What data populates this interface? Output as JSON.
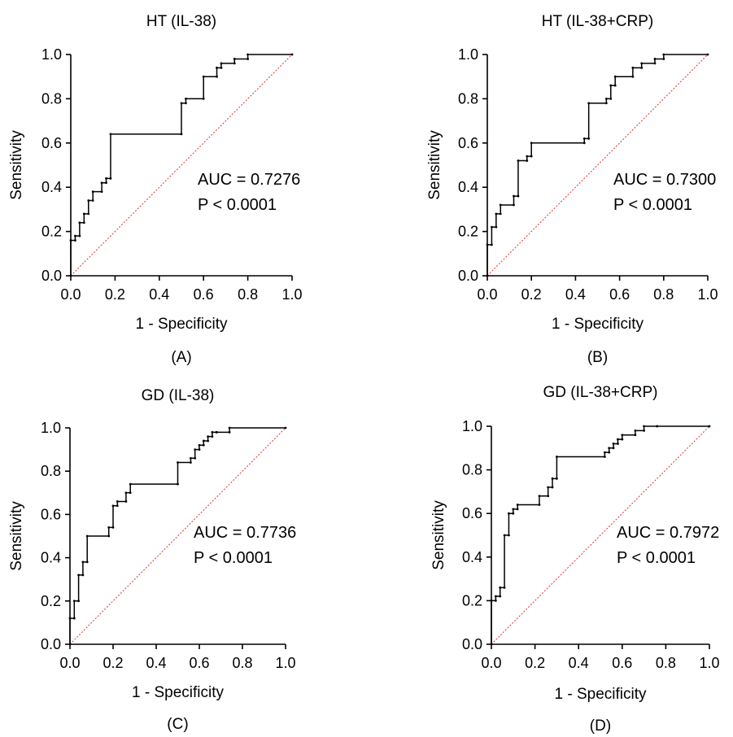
{
  "chart_data": [
    {
      "type": "line",
      "title": "HT (IL-38)",
      "panel_label": "(A)",
      "xlabel": "1 - Specificity",
      "ylabel": "Sensitivity",
      "xlim": [
        0,
        1
      ],
      "ylim": [
        0,
        1
      ],
      "xticks": [
        "0.0",
        "0.2",
        "0.4",
        "0.6",
        "0.8",
        "1.0"
      ],
      "yticks": [
        "0.0",
        "0.2",
        "0.4",
        "0.6",
        "0.8",
        "1.0"
      ],
      "annotations": [
        "AUC = 0.7276",
        "P < 0.0001"
      ],
      "grid": false,
      "reference_line": {
        "x": [
          0,
          1
        ],
        "y": [
          0,
          1
        ],
        "color": "#e03030",
        "style": "dotted"
      },
      "series": [
        {
          "color": "#000000",
          "x": [
            0,
            0,
            0.02,
            0.02,
            0.04,
            0.04,
            0.06,
            0.06,
            0.08,
            0.08,
            0.1,
            0.1,
            0.14,
            0.14,
            0.16,
            0.16,
            0.18,
            0.18,
            0.5,
            0.5,
            0.52,
            0.52,
            0.6,
            0.6,
            0.66,
            0.66,
            0.68,
            0.68,
            0.74,
            0.74,
            0.8,
            0.8,
            1.0
          ],
          "y": [
            0,
            0.16,
            0.16,
            0.18,
            0.18,
            0.24,
            0.24,
            0.28,
            0.28,
            0.34,
            0.34,
            0.38,
            0.38,
            0.42,
            0.42,
            0.44,
            0.44,
            0.64,
            0.64,
            0.78,
            0.78,
            0.8,
            0.8,
            0.9,
            0.9,
            0.94,
            0.94,
            0.96,
            0.96,
            0.98,
            0.98,
            1.0,
            1.0
          ]
        }
      ]
    },
    {
      "type": "line",
      "title": "HT (IL-38+CRP)",
      "panel_label": "(B)",
      "xlabel": "1 - Specificity",
      "ylabel": "Sensitivity",
      "xlim": [
        0,
        1
      ],
      "ylim": [
        0,
        1
      ],
      "xticks": [
        "0.0",
        "0.2",
        "0.4",
        "0.6",
        "0.8",
        "1.0"
      ],
      "yticks": [
        "0.0",
        "0.2",
        "0.4",
        "0.6",
        "0.8",
        "1.0"
      ],
      "annotations": [
        "AUC = 0.7300",
        "P < 0.0001"
      ],
      "grid": false,
      "reference_line": {
        "x": [
          0,
          1
        ],
        "y": [
          0,
          1
        ],
        "color": "#e03030",
        "style": "dotted"
      },
      "series": [
        {
          "color": "#000000",
          "x": [
            0,
            0,
            0.02,
            0.02,
            0.04,
            0.04,
            0.06,
            0.06,
            0.12,
            0.12,
            0.14,
            0.14,
            0.18,
            0.18,
            0.2,
            0.2,
            0.44,
            0.44,
            0.46,
            0.46,
            0.54,
            0.54,
            0.56,
            0.56,
            0.58,
            0.58,
            0.66,
            0.66,
            0.7,
            0.7,
            0.76,
            0.76,
            0.8,
            0.8,
            1.0
          ],
          "y": [
            0,
            0.14,
            0.14,
            0.22,
            0.22,
            0.28,
            0.28,
            0.32,
            0.32,
            0.36,
            0.36,
            0.52,
            0.52,
            0.54,
            0.54,
            0.6,
            0.6,
            0.62,
            0.62,
            0.78,
            0.78,
            0.8,
            0.8,
            0.86,
            0.86,
            0.9,
            0.9,
            0.94,
            0.94,
            0.96,
            0.96,
            0.98,
            0.98,
            1.0,
            1.0
          ]
        }
      ]
    },
    {
      "type": "line",
      "title": "GD (IL-38)",
      "panel_label": "(C)",
      "xlabel": "1 - Specificity",
      "ylabel": "Sensitivity",
      "xlim": [
        0,
        1
      ],
      "ylim": [
        0,
        1
      ],
      "xticks": [
        "0.0",
        "0.2",
        "0.4",
        "0.6",
        "0.8",
        "1.0"
      ],
      "yticks": [
        "0.0",
        "0.2",
        "0.4",
        "0.6",
        "0.8",
        "1.0"
      ],
      "annotations": [
        "AUC = 0.7736",
        "P < 0.0001"
      ],
      "grid": false,
      "reference_line": {
        "x": [
          0,
          1
        ],
        "y": [
          0,
          1
        ],
        "color": "#e03030",
        "style": "dotted"
      },
      "series": [
        {
          "color": "#000000",
          "x": [
            0,
            0,
            0.02,
            0.02,
            0.04,
            0.04,
            0.06,
            0.06,
            0.08,
            0.08,
            0.18,
            0.18,
            0.2,
            0.2,
            0.22,
            0.22,
            0.26,
            0.26,
            0.28,
            0.28,
            0.5,
            0.5,
            0.56,
            0.56,
            0.58,
            0.58,
            0.6,
            0.6,
            0.62,
            0.62,
            0.64,
            0.64,
            0.66,
            0.66,
            0.68,
            0.68,
            0.74,
            0.74,
            1.0
          ],
          "y": [
            0,
            0.12,
            0.12,
            0.2,
            0.2,
            0.32,
            0.32,
            0.38,
            0.38,
            0.5,
            0.5,
            0.54,
            0.54,
            0.64,
            0.64,
            0.66,
            0.66,
            0.7,
            0.7,
            0.74,
            0.74,
            0.84,
            0.84,
            0.86,
            0.86,
            0.9,
            0.9,
            0.92,
            0.92,
            0.94,
            0.94,
            0.96,
            0.96,
            0.98,
            0.98,
            0.98,
            0.98,
            1.0,
            1.0
          ]
        }
      ]
    },
    {
      "type": "line",
      "title": "GD (IL-38+CRP)",
      "panel_label": "(D)",
      "xlabel": "1 - Specificity",
      "ylabel": "Sensitivity",
      "xlim": [
        0,
        1
      ],
      "ylim": [
        0,
        1
      ],
      "xticks": [
        "0.0",
        "0.2",
        "0.4",
        "0.6",
        "0.8",
        "1.0"
      ],
      "yticks": [
        "0.0",
        "0.2",
        "0.4",
        "0.6",
        "0.8",
        "1.0"
      ],
      "annotations": [
        "AUC = 0.7972",
        "P < 0.0001"
      ],
      "grid": false,
      "reference_line": {
        "x": [
          0,
          1
        ],
        "y": [
          0,
          1
        ],
        "color": "#e03030",
        "style": "dotted"
      },
      "series": [
        {
          "color": "#000000",
          "x": [
            0,
            0,
            0.02,
            0.02,
            0.04,
            0.04,
            0.06,
            0.06,
            0.08,
            0.08,
            0.1,
            0.1,
            0.12,
            0.12,
            0.22,
            0.22,
            0.26,
            0.26,
            0.28,
            0.28,
            0.3,
            0.3,
            0.52,
            0.52,
            0.54,
            0.54,
            0.56,
            0.56,
            0.58,
            0.58,
            0.6,
            0.6,
            0.66,
            0.66,
            0.7,
            0.7,
            0.76,
            0.76,
            1.0
          ],
          "y": [
            0,
            0.2,
            0.2,
            0.22,
            0.22,
            0.26,
            0.26,
            0.5,
            0.5,
            0.6,
            0.6,
            0.62,
            0.62,
            0.64,
            0.64,
            0.68,
            0.68,
            0.72,
            0.72,
            0.76,
            0.76,
            0.86,
            0.86,
            0.88,
            0.88,
            0.9,
            0.9,
            0.92,
            0.92,
            0.94,
            0.94,
            0.96,
            0.96,
            0.98,
            0.98,
            1.0,
            1.0,
            1.0,
            1.0
          ]
        }
      ]
    }
  ]
}
